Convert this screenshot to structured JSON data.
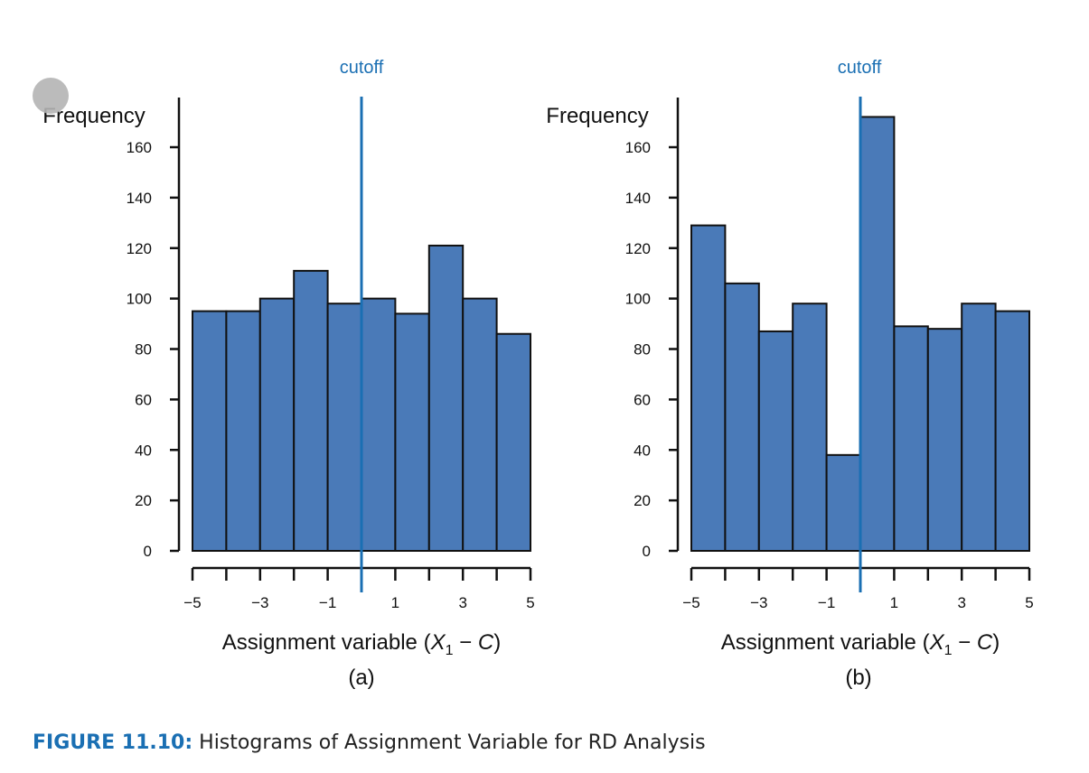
{
  "figure_caption": {
    "label": "FIGURE 11.10:",
    "text": "Histograms of Assignment Variable for RD Analysis"
  },
  "colors": {
    "bar_fill": "#4a7ab8",
    "bar_stroke": "#111111",
    "cutoff_line": "#1a6fb3",
    "axis": "#111111"
  },
  "chart_data": [
    {
      "type": "bar",
      "panel_label": "(a)",
      "ylabel": "Frequency",
      "xlabel_prefix": "Assignment variable (",
      "xlabel_var": "X",
      "xlabel_sub": "1",
      "xlabel_minus": " − ",
      "xlabel_c": "C",
      "xlabel_suffix": ")",
      "annotation": "cutoff",
      "cutoff_x": 0,
      "bin_edges": [
        -5,
        -4,
        -3,
        -2,
        -1,
        0,
        1,
        2,
        3,
        4,
        5
      ],
      "values": [
        95,
        95,
        100,
        111,
        98,
        100,
        94,
        121,
        100,
        86
      ],
      "xlim": [
        -5,
        5
      ],
      "ylim": [
        0,
        175
      ],
      "yticks": [
        0,
        20,
        40,
        60,
        80,
        100,
        120,
        140,
        160
      ],
      "xticks": [
        -5,
        -3,
        -1,
        1,
        3,
        5
      ],
      "xticks_labels": [
        "−5",
        "−3",
        "−1",
        "1",
        "3",
        "5"
      ]
    },
    {
      "type": "bar",
      "panel_label": "(b)",
      "ylabel": "Frequency",
      "xlabel_prefix": "Assignment variable (",
      "xlabel_var": "X",
      "xlabel_sub": "1",
      "xlabel_minus": " − ",
      "xlabel_c": "C",
      "xlabel_suffix": ")",
      "annotation": "cutoff",
      "cutoff_x": 0,
      "bin_edges": [
        -5,
        -4,
        -3,
        -2,
        -1,
        0,
        1,
        2,
        3,
        4,
        5
      ],
      "values": [
        129,
        106,
        87,
        98,
        38,
        172,
        89,
        88,
        98,
        95
      ],
      "xlim": [
        -5,
        5
      ],
      "ylim": [
        0,
        175
      ],
      "yticks": [
        0,
        20,
        40,
        60,
        80,
        100,
        120,
        140,
        160
      ],
      "xticks": [
        -5,
        -3,
        -1,
        1,
        3,
        5
      ],
      "xticks_labels": [
        "−5",
        "−3",
        "−1",
        "1",
        "3",
        "5"
      ]
    }
  ]
}
